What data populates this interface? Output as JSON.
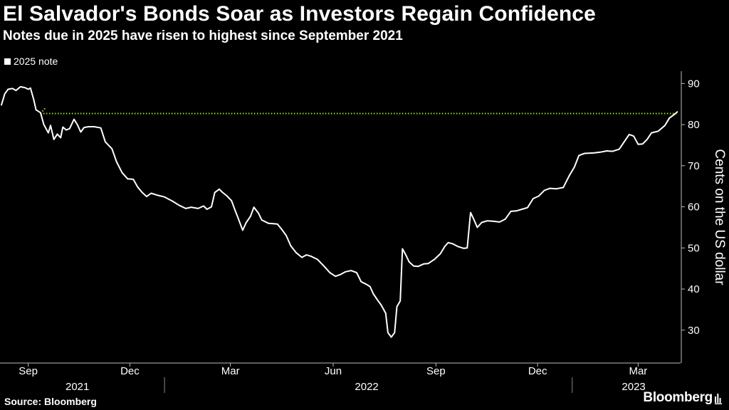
{
  "title": "El Salvador's Bonds Soar as Investors Regain Confidence",
  "subtitle": "Notes due in 2025 have risen to highest since September 2021",
  "source": "Source: Bloomberg",
  "brand": "Bloomberg",
  "colors": {
    "background": "#000000",
    "line": "#ffffff",
    "reference": "#9ae62a"
  },
  "chart_data": {
    "type": "line",
    "title": "El Salvador's Bonds Soar as Investors Regain Confidence",
    "subtitle": "Notes due in 2025 have risen to highest since September 2021",
    "ylabel": "Cents on the US dollar",
    "xlabel": "",
    "ylim": [
      22,
      93
    ],
    "yticks": [
      30,
      40,
      50,
      60,
      70,
      80,
      90
    ],
    "xlim": [
      "2021-08-08",
      "2023-04-08"
    ],
    "xticks": [
      {
        "label": "Sep",
        "date": "2021-09-01"
      },
      {
        "label": "Dec",
        "date": "2021-12-01"
      },
      {
        "label": "Mar",
        "date": "2022-03-01"
      },
      {
        "label": "Jun",
        "date": "2022-06-01"
      },
      {
        "label": "Sep",
        "date": "2022-09-01"
      },
      {
        "label": "Dec",
        "date": "2022-12-01"
      },
      {
        "label": "Mar",
        "date": "2023-03-01"
      }
    ],
    "year_labels": [
      {
        "label": "2021",
        "center": "2021-10-15"
      },
      {
        "label": "2022",
        "center": "2022-07-01"
      },
      {
        "label": "2023",
        "center": "2023-02-25"
      }
    ],
    "year_dividers": [
      "2022-01-01",
      "2023-01-01"
    ],
    "legend": "top-left",
    "grid": false,
    "series": [
      {
        "name": "2025 note",
        "points": [
          [
            "2021-08-08",
            84.8
          ],
          [
            "2021-08-11",
            87.5
          ],
          [
            "2021-08-14",
            88.6
          ],
          [
            "2021-08-18",
            88.8
          ],
          [
            "2021-08-21",
            88.3
          ],
          [
            "2021-08-25",
            89.2
          ],
          [
            "2021-08-29",
            89.0
          ],
          [
            "2021-09-01",
            88.6
          ],
          [
            "2021-09-03",
            88.9
          ],
          [
            "2021-09-06",
            86.0
          ],
          [
            "2021-09-08",
            83.6
          ],
          [
            "2021-09-12",
            82.9
          ],
          [
            "2021-09-15",
            80.0
          ],
          [
            "2021-09-19",
            78.0
          ],
          [
            "2021-09-21",
            79.8
          ],
          [
            "2021-09-24",
            76.4
          ],
          [
            "2021-09-27",
            77.7
          ],
          [
            "2021-09-30",
            76.8
          ],
          [
            "2021-10-02",
            79.4
          ],
          [
            "2021-10-05",
            78.7
          ],
          [
            "2021-10-08",
            79.0
          ],
          [
            "2021-10-12",
            81.3
          ],
          [
            "2021-10-15",
            80.0
          ],
          [
            "2021-10-18",
            78.2
          ],
          [
            "2021-10-21",
            79.3
          ],
          [
            "2021-10-25",
            79.5
          ],
          [
            "2021-10-30",
            79.5
          ],
          [
            "2021-11-05",
            79.2
          ],
          [
            "2021-11-09",
            75.8
          ],
          [
            "2021-11-15",
            74.1
          ],
          [
            "2021-11-19",
            71.0
          ],
          [
            "2021-11-24",
            68.3
          ],
          [
            "2021-11-29",
            66.8
          ],
          [
            "2021-12-04",
            66.7
          ],
          [
            "2021-12-08",
            64.8
          ],
          [
            "2021-12-12",
            63.5
          ],
          [
            "2021-12-16",
            62.5
          ],
          [
            "2021-12-20",
            63.3
          ],
          [
            "2021-12-26",
            62.8
          ],
          [
            "2022-01-01",
            62.4
          ],
          [
            "2022-01-08",
            61.4
          ],
          [
            "2022-01-14",
            60.4
          ],
          [
            "2022-01-20",
            59.6
          ],
          [
            "2022-01-25",
            59.9
          ],
          [
            "2022-01-31",
            59.6
          ],
          [
            "2022-02-05",
            60.2
          ],
          [
            "2022-02-08",
            59.4
          ],
          [
            "2022-02-12",
            60.0
          ],
          [
            "2022-02-15",
            63.5
          ],
          [
            "2022-02-19",
            64.3
          ],
          [
            "2022-02-22",
            63.5
          ],
          [
            "2022-02-26",
            62.6
          ],
          [
            "2022-03-02",
            61.5
          ],
          [
            "2022-03-05",
            59.3
          ],
          [
            "2022-03-08",
            57.2
          ],
          [
            "2022-03-12",
            54.3
          ],
          [
            "2022-03-15",
            56.1
          ],
          [
            "2022-03-19",
            57.7
          ],
          [
            "2022-03-22",
            59.9
          ],
          [
            "2022-03-26",
            58.5
          ],
          [
            "2022-03-29",
            56.8
          ],
          [
            "2022-04-04",
            56.0
          ],
          [
            "2022-04-12",
            55.8
          ],
          [
            "2022-04-16",
            54.5
          ],
          [
            "2022-04-20",
            53.0
          ],
          [
            "2022-04-24",
            50.5
          ],
          [
            "2022-04-29",
            48.8
          ],
          [
            "2022-05-04",
            47.7
          ],
          [
            "2022-05-08",
            48.3
          ],
          [
            "2022-05-12",
            48.0
          ],
          [
            "2022-05-18",
            47.2
          ],
          [
            "2022-05-24",
            45.5
          ],
          [
            "2022-05-29",
            44.0
          ],
          [
            "2022-06-03",
            43.1
          ],
          [
            "2022-06-08",
            43.6
          ],
          [
            "2022-06-12",
            44.2
          ],
          [
            "2022-06-17",
            44.5
          ],
          [
            "2022-06-22",
            44.0
          ],
          [
            "2022-06-26",
            41.8
          ],
          [
            "2022-07-01",
            41.1
          ],
          [
            "2022-07-04",
            40.6
          ],
          [
            "2022-07-07",
            38.8
          ],
          [
            "2022-07-11",
            37.2
          ],
          [
            "2022-07-14",
            36.1
          ],
          [
            "2022-07-18",
            34.1
          ],
          [
            "2022-07-20",
            29.4
          ],
          [
            "2022-07-23",
            28.3
          ],
          [
            "2022-07-26",
            29.4
          ],
          [
            "2022-07-28",
            35.7
          ],
          [
            "2022-07-31",
            37.1
          ],
          [
            "2022-08-02",
            49.8
          ],
          [
            "2022-08-05",
            48.3
          ],
          [
            "2022-08-08",
            46.6
          ],
          [
            "2022-08-12",
            45.6
          ],
          [
            "2022-08-16",
            45.5
          ],
          [
            "2022-08-21",
            46.1
          ],
          [
            "2022-08-25",
            46.2
          ],
          [
            "2022-08-31",
            47.3
          ],
          [
            "2022-09-05",
            48.6
          ],
          [
            "2022-09-09",
            50.4
          ],
          [
            "2022-09-12",
            51.3
          ],
          [
            "2022-09-16",
            51.0
          ],
          [
            "2022-09-21",
            50.3
          ],
          [
            "2022-09-26",
            49.9
          ],
          [
            "2022-09-29",
            50.0
          ],
          [
            "2022-10-02",
            58.6
          ],
          [
            "2022-10-05",
            56.9
          ],
          [
            "2022-10-08",
            55.0
          ],
          [
            "2022-10-12",
            56.2
          ],
          [
            "2022-10-17",
            56.6
          ],
          [
            "2022-10-22",
            56.5
          ],
          [
            "2022-10-28",
            56.3
          ],
          [
            "2022-11-02",
            57.0
          ],
          [
            "2022-11-07",
            58.9
          ],
          [
            "2022-11-12",
            59.0
          ],
          [
            "2022-11-18",
            59.5
          ],
          [
            "2022-11-22",
            59.8
          ],
          [
            "2022-11-27",
            62.0
          ],
          [
            "2022-12-02",
            62.6
          ],
          [
            "2022-12-07",
            64.0
          ],
          [
            "2022-12-12",
            64.5
          ],
          [
            "2022-12-18",
            64.4
          ],
          [
            "2022-12-24",
            64.7
          ],
          [
            "2022-12-29",
            67.4
          ],
          [
            "2023-01-03",
            69.7
          ],
          [
            "2023-01-07",
            72.5
          ],
          [
            "2023-01-12",
            73.0
          ],
          [
            "2023-01-20",
            73.1
          ],
          [
            "2023-01-26",
            73.3
          ],
          [
            "2023-02-01",
            73.6
          ],
          [
            "2023-02-06",
            73.5
          ],
          [
            "2023-02-12",
            74.0
          ],
          [
            "2023-02-17",
            76.0
          ],
          [
            "2023-02-21",
            77.6
          ],
          [
            "2023-02-25",
            77.2
          ],
          [
            "2023-03-01",
            75.2
          ],
          [
            "2023-03-05",
            75.3
          ],
          [
            "2023-03-09",
            76.4
          ],
          [
            "2023-03-13",
            78.0
          ],
          [
            "2023-03-19",
            78.4
          ],
          [
            "2023-03-25",
            79.8
          ],
          [
            "2023-03-29",
            81.6
          ],
          [
            "2023-04-02",
            82.4
          ],
          [
            "2023-04-05",
            83.1
          ]
        ]
      }
    ],
    "reference_line": {
      "y": 82.7,
      "x_start": "2021-09-12",
      "x_end": "2023-04-05"
    }
  }
}
